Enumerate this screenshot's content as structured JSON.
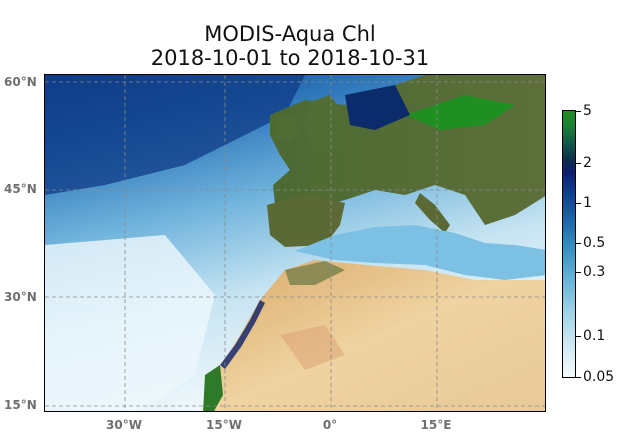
{
  "title": {
    "line1": "MODIS-Aqua Chl",
    "line2": "2018-10-01 to 2018-10-31"
  },
  "axes": {
    "lat_labels": [
      "60°N",
      "45°N",
      "30°N",
      "15°N"
    ],
    "lon_labels": [
      "30°W",
      "15°W",
      "0°",
      "15°E"
    ]
  },
  "colorbar": {
    "scale": "log",
    "ticks": [
      "5",
      "2",
      "1",
      "0.5",
      "0.3",
      "0.1",
      "0.05"
    ],
    "colors": {
      "low": "#f4fbfd",
      "mid": "#2e8cbd",
      "high_blue": "#0b1f6b",
      "max": "#1f8f22"
    }
  },
  "map_colors": {
    "ocean_coastal": "#1a4f9a",
    "ocean_open": "#5aa6d6",
    "ocean_subtropical": "#e6f3f9",
    "land_vegetation": "#3f5f2c",
    "land_desert": "#e6c48f",
    "gridline": "#888888"
  }
}
